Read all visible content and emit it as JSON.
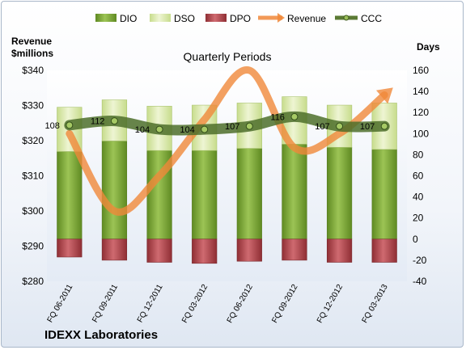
{
  "chart_data": {
    "type": "bar",
    "title": "Quarterly Periods",
    "company": "IDEXX Laboratories",
    "left_axis_title": [
      "Revenue",
      "$millions"
    ],
    "right_axis_title": "Days",
    "left_ticks": [
      "$340",
      "$330",
      "$320",
      "$310",
      "$300",
      "$290",
      "$280"
    ],
    "right_ticks": [
      "160",
      "140",
      "120",
      "100",
      "80",
      "60",
      "40",
      "20",
      "0",
      "-20",
      "-40"
    ],
    "left_ylim": [
      280,
      340
    ],
    "right_ylim": [
      -40,
      160
    ],
    "categories": [
      "FQ 06-2011",
      "FQ 09-2011",
      "FQ 12-2011",
      "FQ 03-2012",
      "FQ 06-2012",
      "FQ 09-2012",
      "FQ 12-2012",
      "FQ 03-2013"
    ],
    "series": [
      {
        "name": "DIO",
        "axis": "days",
        "type": "stacked-bar",
        "color": "#7ea63a",
        "values": [
          83,
          93,
          84,
          84,
          86,
          90,
          87,
          85
        ]
      },
      {
        "name": "DSO",
        "axis": "days",
        "type": "stacked-bar",
        "color": "#dce9b0",
        "values": [
          42,
          39,
          42,
          43,
          43,
          45,
          40,
          44
        ]
      },
      {
        "name": "DPO",
        "axis": "days",
        "type": "bar-negative",
        "color": "#b8444a",
        "values": [
          -17,
          -20,
          -22,
          -23,
          -21,
          -20,
          -22,
          -22
        ]
      },
      {
        "name": "Revenue",
        "axis": "revenue",
        "type": "line",
        "color": "#f0883a",
        "values": [
          322,
          300,
          310,
          326,
          340,
          318,
          322,
          333
        ]
      },
      {
        "name": "CCC",
        "axis": "days",
        "type": "line",
        "color": "#5b7a34",
        "values": [
          108,
          112,
          104,
          104,
          107,
          116,
          107,
          107
        ]
      }
    ],
    "ccc_labels": [
      "108",
      "112",
      "104",
      "104",
      "107",
      "116",
      "107",
      "107"
    ],
    "legend": [
      "DIO",
      "DSO",
      "DPO",
      "Revenue",
      "CCC"
    ],
    "legend_position": "top",
    "grid": false
  }
}
